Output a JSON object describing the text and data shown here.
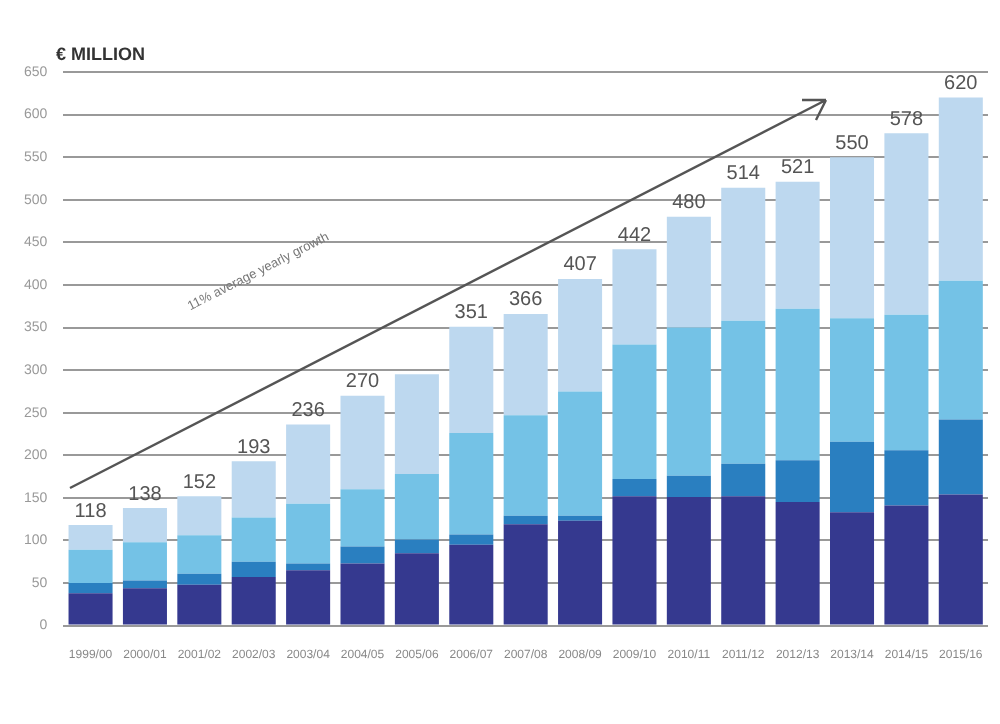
{
  "chart_data": {
    "type": "bar",
    "stacked": true,
    "ylabel": "€ MILLION",
    "categories": [
      "1999/00",
      "2000/01",
      "2001/02",
      "2002/03",
      "2003/04",
      "2004/05",
      "2005/06",
      "2006/07",
      "2007/08",
      "2008/09",
      "2009/10",
      "2010/11",
      "2011/12",
      "2012/13",
      "2013/14",
      "2014/15",
      "2015/16"
    ],
    "series": [
      {
        "color": "#35398f",
        "values": [
          38,
          44,
          48,
          57,
          65,
          73,
          85,
          95,
          119,
          123,
          152,
          151,
          152,
          145,
          133,
          141,
          154
        ]
      },
      {
        "color": "#2a7fc0",
        "values": [
          12,
          9,
          13,
          18,
          8,
          20,
          16,
          12,
          10,
          6,
          20,
          25,
          38,
          49,
          83,
          65,
          88
        ]
      },
      {
        "color": "#74c2e6",
        "values": [
          39,
          45,
          45,
          52,
          70,
          67,
          77,
          119,
          118,
          146,
          158,
          174,
          168,
          178,
          145,
          159,
          163
        ]
      },
      {
        "color": "#bdd8ef",
        "values": [
          29,
          40,
          46,
          66,
          93,
          110,
          117,
          125,
          119,
          132,
          112,
          130,
          156,
          149,
          189,
          213,
          215
        ]
      }
    ],
    "totals": [
      "118",
      "138",
      "152",
      "193",
      "236",
      "270",
      null,
      "351",
      "366",
      "407",
      "442",
      "480",
      "514",
      "521",
      "550",
      "578",
      "620"
    ],
    "annotations": [
      "11% average yearly growth"
    ],
    "ylim": [
      0,
      650
    ],
    "yticks": [
      0,
      50,
      100,
      150,
      200,
      250,
      300,
      350,
      400,
      450,
      500,
      550,
      600,
      650
    ],
    "grid": "y",
    "legend": false
  }
}
